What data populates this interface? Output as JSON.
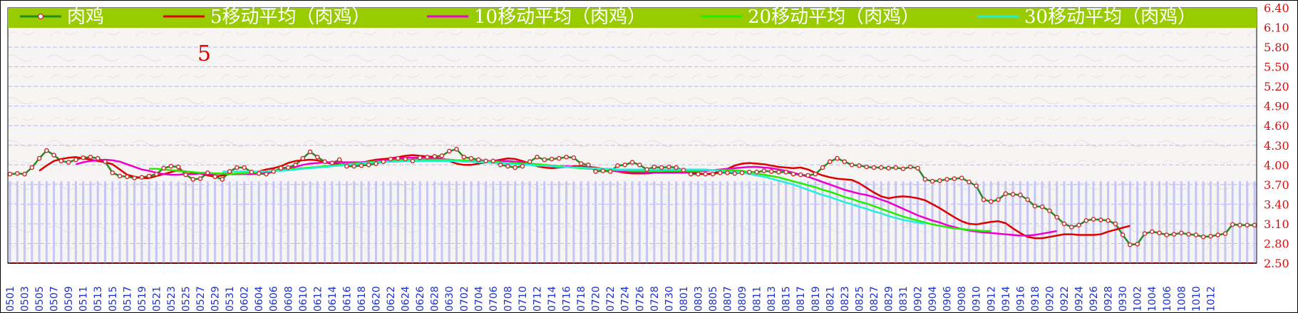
{
  "chart_data": {
    "type": "line",
    "ylim": [
      2.5,
      6.4
    ],
    "yticks": [
      "6.40",
      "6.10",
      "5.80",
      "5.50",
      "5.20",
      "4.90",
      "4.60",
      "4.30",
      "4.00",
      "3.70",
      "3.40",
      "3.10",
      "2.80",
      "2.50"
    ],
    "annotation": "5",
    "grid": true,
    "legend_position": "top",
    "colors": {
      "background": "#f6f5f3",
      "legend_bg": "#99cc00",
      "grid": "#b8b8ff",
      "volume_bars": "#c6c6f5",
      "price": "#228b22",
      "price_marker": "#cc3333",
      "ma5": "#dd0000",
      "ma10": "#ee00cc",
      "ma20": "#22ee00",
      "ma30": "#22eedd",
      "axis_zero": "#ff0000"
    },
    "series": [
      {
        "name": "肉鸡",
        "key": "price",
        "values": [
          3.86,
          3.87,
          3.86,
          3.96,
          4.1,
          4.22,
          4.15,
          4.06,
          4.04,
          4.08,
          4.11,
          4.12,
          4.1,
          4.05,
          3.88,
          3.83,
          3.82,
          3.8,
          3.81,
          3.83,
          3.86,
          3.95,
          3.98,
          3.97,
          3.85,
          3.78,
          3.79,
          3.88,
          3.82,
          3.78,
          3.9,
          3.96,
          3.96,
          3.89,
          3.87,
          3.86,
          3.9,
          3.95,
          3.96,
          4.0,
          4.1,
          4.2,
          4.12,
          4.05,
          4.03,
          4.08,
          3.98,
          3.98,
          3.99,
          4.0,
          4.02,
          4.05,
          4.09,
          4.1,
          4.09,
          4.06,
          4.11,
          4.12,
          4.13,
          4.14,
          4.21,
          4.24,
          4.12,
          4.1,
          4.08,
          4.06,
          4.06,
          4.0,
          3.98,
          3.96,
          3.98,
          4.05,
          4.12,
          4.08,
          4.09,
          4.1,
          4.12,
          4.11,
          4.02,
          4.0,
          3.9,
          3.91,
          3.9,
          3.99,
          4.0,
          4.04,
          4.0,
          3.93,
          3.97,
          3.96,
          3.97,
          3.96,
          3.92,
          3.86,
          3.86,
          3.86,
          3.86,
          3.88,
          3.88,
          3.87,
          3.88,
          3.89,
          3.89,
          3.91,
          3.9,
          3.89,
          3.89,
          3.86,
          3.85,
          3.84,
          3.86,
          3.96,
          4.05,
          4.1,
          4.05,
          4.0,
          3.99,
          3.97,
          3.96,
          3.96,
          3.95,
          3.96,
          3.94,
          3.97,
          3.95,
          3.78,
          3.75,
          3.76,
          3.78,
          3.79,
          3.8,
          3.74,
          3.68,
          3.47,
          3.44,
          3.47,
          3.56,
          3.55,
          3.54,
          3.47,
          3.37,
          3.36,
          3.3,
          3.2,
          3.1,
          3.05,
          3.08,
          3.15,
          3.17,
          3.16,
          3.15,
          3.1,
          2.93,
          2.78,
          2.79,
          2.95,
          2.98,
          2.96,
          2.93,
          2.94,
          2.96,
          2.94,
          2.93,
          2.9,
          2.91,
          2.93,
          2.95,
          3.09,
          3.08,
          3.08,
          3.08
        ]
      },
      {
        "name": "5移动平均（肉鸡）",
        "key": "ma5",
        "start": 4,
        "values": [
          3.91,
          3.99,
          4.06,
          4.09,
          4.11,
          4.12,
          4.1,
          4.08,
          4.06,
          4.04,
          4.01,
          3.93,
          3.85,
          3.82,
          3.8,
          3.8,
          3.83,
          3.86,
          3.89,
          3.92,
          3.9,
          3.88,
          3.87,
          3.84,
          3.82,
          3.84,
          3.86,
          3.86,
          3.87,
          3.88,
          3.9,
          3.93,
          3.95,
          3.98,
          4.03,
          4.06,
          4.07,
          4.08,
          4.07,
          4.04,
          4.02,
          4.01,
          4.0,
          4.01,
          4.03,
          4.06,
          4.08,
          4.09,
          4.1,
          4.12,
          4.14,
          4.15,
          4.14,
          4.13,
          4.12,
          4.09,
          4.06,
          4.02,
          4.0,
          4.0,
          4.02,
          4.04,
          4.06,
          4.08,
          4.1,
          4.09,
          4.06,
          4.02,
          3.98,
          3.96,
          3.95,
          3.96,
          3.97,
          3.98,
          3.98,
          3.97,
          3.96,
          3.94,
          3.92,
          3.9,
          3.88,
          3.87,
          3.87,
          3.87,
          3.88,
          3.88,
          3.89,
          3.89,
          3.89,
          3.88,
          3.87,
          3.86,
          3.87,
          3.9,
          3.94,
          3.99,
          4.02,
          4.03,
          4.02,
          4.01,
          3.99,
          3.97,
          3.96,
          3.95,
          3.96,
          3.93,
          3.88,
          3.84,
          3.81,
          3.79,
          3.78,
          3.77,
          3.72,
          3.65,
          3.58,
          3.52,
          3.49,
          3.51,
          3.52,
          3.51,
          3.49,
          3.46,
          3.4,
          3.34,
          3.27,
          3.2,
          3.14,
          3.1,
          3.09,
          3.11,
          3.13,
          3.14,
          3.11,
          3.03,
          2.96,
          2.9,
          2.88,
          2.88,
          2.9,
          2.92,
          2.94,
          2.94,
          2.93,
          2.93,
          2.93,
          2.94,
          2.98,
          3.01,
          3.04,
          3.07
        ]
      },
      {
        "name": "10移动平均（肉鸡）",
        "key": "ma10",
        "start": 9,
        "values": [
          4.01,
          4.04,
          4.06,
          4.07,
          4.08,
          4.07,
          4.05,
          4.01,
          3.97,
          3.93,
          3.91,
          3.88,
          3.86,
          3.85,
          3.85,
          3.86,
          3.86,
          3.87,
          3.86,
          3.86,
          3.87,
          3.87,
          3.86,
          3.86,
          3.86,
          3.87,
          3.88,
          3.9,
          3.92,
          3.94,
          3.97,
          4.0,
          4.02,
          4.03,
          4.04,
          4.04,
          4.04,
          4.04,
          4.04,
          4.04,
          4.05,
          4.06,
          4.07,
          4.08,
          4.1,
          4.11,
          4.11,
          4.11,
          4.11,
          4.1,
          4.09,
          4.08,
          4.07,
          4.07,
          4.06,
          4.06,
          4.06,
          4.06,
          4.06,
          4.06,
          4.05,
          4.04,
          4.02,
          4.01,
          4.0,
          3.99,
          3.98,
          3.98,
          3.97,
          3.96,
          3.95,
          3.94,
          3.93,
          3.92,
          3.91,
          3.9,
          3.89,
          3.89,
          3.88,
          3.88,
          3.88,
          3.88,
          3.88,
          3.88,
          3.89,
          3.9,
          3.91,
          3.92,
          3.93,
          3.94,
          3.95,
          3.96,
          3.97,
          3.97,
          3.96,
          3.95,
          3.93,
          3.91,
          3.88,
          3.85,
          3.82,
          3.78,
          3.74,
          3.7,
          3.66,
          3.62,
          3.59,
          3.56,
          3.54,
          3.51,
          3.47,
          3.43,
          3.38,
          3.33,
          3.28,
          3.23,
          3.19,
          3.15,
          3.12,
          3.08,
          3.05,
          3.02,
          3.0,
          2.98,
          2.97,
          2.96,
          2.95,
          2.94,
          2.93,
          2.92,
          2.92,
          2.93,
          2.95,
          2.97,
          2.99
        ]
      },
      {
        "name": "20移动平均（肉鸡）",
        "key": "ma20",
        "start": 19,
        "values": [
          3.94,
          3.94,
          3.93,
          3.92,
          3.91,
          3.9,
          3.89,
          3.88,
          3.88,
          3.87,
          3.87,
          3.86,
          3.87,
          3.87,
          3.88,
          3.89,
          3.9,
          3.91,
          3.92,
          3.93,
          3.94,
          3.95,
          3.96,
          3.97,
          3.98,
          3.99,
          4.0,
          4.01,
          4.02,
          4.03,
          4.04,
          4.05,
          4.05,
          4.06,
          4.07,
          4.07,
          4.08,
          4.08,
          4.08,
          4.08,
          4.08,
          4.08,
          4.07,
          4.07,
          4.06,
          4.06,
          4.05,
          4.05,
          4.04,
          4.03,
          4.03,
          4.02,
          4.02,
          4.01,
          4.0,
          3.99,
          3.98,
          3.97,
          3.96,
          3.95,
          3.94,
          3.94,
          3.93,
          3.93,
          3.92,
          3.92,
          3.91,
          3.91,
          3.91,
          3.91,
          3.91,
          3.91,
          3.91,
          3.91,
          3.91,
          3.91,
          3.92,
          3.92,
          3.92,
          3.92,
          3.92,
          3.91,
          3.89,
          3.87,
          3.85,
          3.83,
          3.81,
          3.78,
          3.75,
          3.72,
          3.69,
          3.66,
          3.62,
          3.59,
          3.55,
          3.51,
          3.48,
          3.44,
          3.41,
          3.37,
          3.33,
          3.29,
          3.25,
          3.21,
          3.18,
          3.15,
          3.12,
          3.09,
          3.07,
          3.05,
          3.03,
          3.02,
          3.01,
          3.0,
          2.99,
          2.99
        ]
      },
      {
        "name": "30移动平均（肉鸡）",
        "key": "ma30",
        "start": 29,
        "values": [
          3.9,
          3.9,
          3.9,
          3.9,
          3.9,
          3.9,
          3.9,
          3.91,
          3.91,
          3.92,
          3.93,
          3.94,
          3.95,
          3.96,
          3.97,
          3.98,
          3.99,
          4.0,
          4.01,
          4.02,
          4.03,
          4.04,
          4.04,
          4.05,
          4.05,
          4.06,
          4.06,
          4.06,
          4.06,
          4.06,
          4.06,
          4.06,
          4.06,
          4.05,
          4.05,
          4.04,
          4.04,
          4.03,
          4.03,
          4.02,
          4.01,
          4.0,
          4.0,
          3.99,
          3.99,
          3.98,
          3.97,
          3.97,
          3.96,
          3.96,
          3.95,
          3.95,
          3.94,
          3.94,
          3.93,
          3.93,
          3.93,
          3.93,
          3.93,
          3.93,
          3.93,
          3.93,
          3.93,
          3.93,
          3.93,
          3.93,
          3.93,
          3.92,
          3.91,
          3.9,
          3.89,
          3.88,
          3.86,
          3.84,
          3.82,
          3.79,
          3.76,
          3.73,
          3.7,
          3.66,
          3.62,
          3.58,
          3.54,
          3.51,
          3.47,
          3.43,
          3.4,
          3.36,
          3.33,
          3.29,
          3.26,
          3.22,
          3.19,
          3.16,
          3.14,
          3.12,
          3.1
        ]
      }
    ],
    "x_labels": [
      "0501",
      "0503",
      "0505",
      "0507",
      "0509",
      "0511",
      "0513",
      "0515",
      "0517",
      "0519",
      "0521",
      "0523",
      "0525",
      "0527",
      "0529",
      "0531",
      "0602",
      "0604",
      "0606",
      "0608",
      "0610",
      "0612",
      "0614",
      "0616",
      "0618",
      "0620",
      "0622",
      "0624",
      "0626",
      "0628",
      "0630",
      "0702",
      "0704",
      "0706",
      "0708",
      "0710",
      "0712",
      "0714",
      "0716",
      "0718",
      "0720",
      "0722",
      "0724",
      "0726",
      "0728",
      "0730",
      "0801",
      "0803",
      "0805",
      "0807",
      "0809",
      "0811",
      "0813",
      "0815",
      "0817",
      "0819",
      "0821",
      "0823",
      "0825",
      "0827",
      "0829",
      "0831",
      "0902",
      "0904",
      "0906",
      "0908",
      "0910",
      "0912",
      "0914",
      "0916",
      "0918",
      "0920",
      "0922",
      "0924",
      "0926",
      "0928",
      "0930",
      "1002",
      "1004",
      "1006",
      "1008",
      "1010",
      "1012"
    ]
  }
}
